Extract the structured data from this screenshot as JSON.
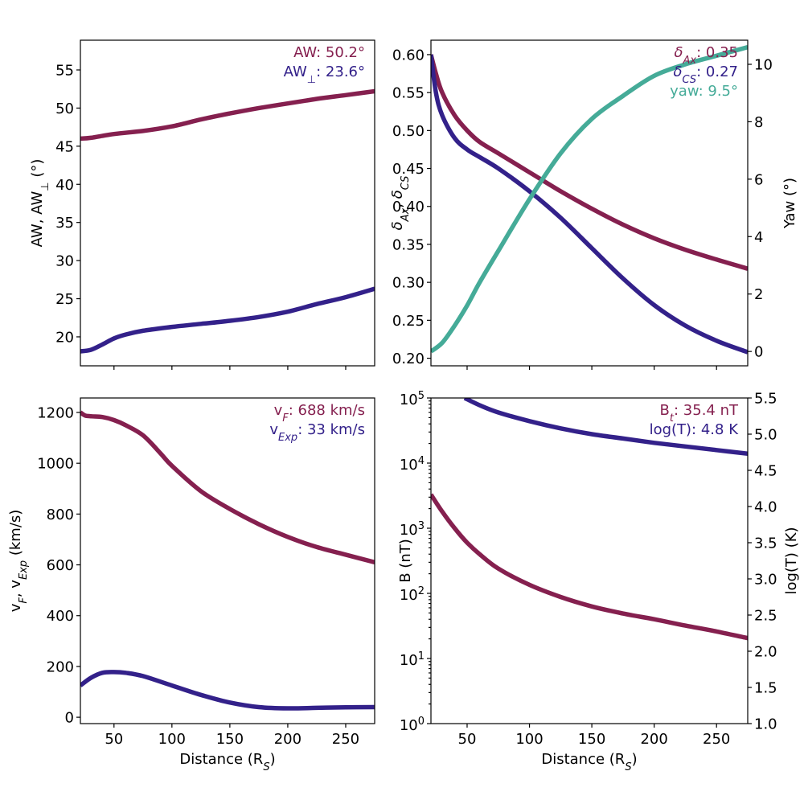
{
  "colors": {
    "maroon": "#85204f",
    "indigo": "#33218a",
    "teal": "#45ab98"
  },
  "chart_data": [
    {
      "id": "aw",
      "type": "line",
      "title": "",
      "xlabel": "",
      "ylabel": "AW, AW⊥ (°)",
      "xlim": [
        21,
        275
      ],
      "ylim": [
        16.2,
        58.9
      ],
      "x_ticks": [
        50,
        100,
        150,
        200,
        250
      ],
      "x_tick_labels_visible": false,
      "y_ticks": [
        20,
        25,
        30,
        35,
        40,
        45,
        50,
        55
      ],
      "y_tick_labels": [
        "20",
        "25",
        "30",
        "35",
        "40",
        "45",
        "50",
        "55"
      ],
      "grid": false,
      "annotations": [
        {
          "text": "AW: 50.2°",
          "color": "maroon",
          "position": "top-right"
        },
        {
          "text": "AW⊥: 23.6°",
          "color": "indigo",
          "position": "top-right"
        }
      ],
      "series": [
        {
          "name": "AW",
          "color": "maroon",
          "axis": "left",
          "x": [
            21,
            30,
            50,
            75,
            100,
            125,
            150,
            175,
            200,
            225,
            250,
            275
          ],
          "y": [
            46.0,
            46.1,
            46.6,
            47.0,
            47.6,
            48.5,
            49.3,
            50.0,
            50.6,
            51.2,
            51.7,
            52.2
          ]
        },
        {
          "name": "AW⊥",
          "color": "indigo",
          "axis": "left",
          "x": [
            21,
            30,
            40,
            50,
            60,
            75,
            100,
            125,
            150,
            175,
            200,
            225,
            250,
            275
          ],
          "y": [
            18.1,
            18.3,
            19.0,
            19.8,
            20.3,
            20.8,
            21.3,
            21.7,
            22.1,
            22.6,
            23.3,
            24.3,
            25.2,
            26.3
          ]
        }
      ]
    },
    {
      "id": "delta-yaw",
      "type": "line",
      "title": "",
      "xlabel": "",
      "ylabel": "δAx, δCS",
      "ylabel_right": "Yaw (°)",
      "xlim": [
        21,
        275
      ],
      "ylim": [
        0.19,
        0.619
      ],
      "ylim_right": [
        -0.5,
        10.84
      ],
      "x_ticks": [
        50,
        100,
        150,
        200,
        250
      ],
      "x_tick_labels_visible": false,
      "y_ticks": [
        0.2,
        0.25,
        0.3,
        0.35,
        0.4,
        0.45,
        0.5,
        0.55,
        0.6
      ],
      "y_tick_labels": [
        "0.20",
        "0.25",
        "0.30",
        "0.35",
        "0.40",
        "0.45",
        "0.50",
        "0.55",
        "0.60"
      ],
      "y_ticks_right": [
        0,
        2,
        4,
        6,
        8,
        10
      ],
      "y_tick_labels_right": [
        "0",
        "2",
        "4",
        "6",
        "8",
        "10"
      ],
      "grid": false,
      "annotations": [
        {
          "text": "δAx: 0.35",
          "color": "maroon",
          "position": "top-right"
        },
        {
          "text": "δCS: 0.27",
          "color": "indigo",
          "position": "top-right"
        },
        {
          "text": "yaw:  9.5°",
          "color": "teal",
          "position": "top-right"
        }
      ],
      "series": [
        {
          "name": "δAx",
          "color": "maroon",
          "axis": "left",
          "x": [
            21,
            25,
            30,
            40,
            50,
            60,
            75,
            100,
            125,
            150,
            175,
            200,
            225,
            250,
            275
          ],
          "y": [
            0.6,
            0.575,
            0.55,
            0.52,
            0.5,
            0.485,
            0.47,
            0.445,
            0.42,
            0.397,
            0.376,
            0.358,
            0.343,
            0.33,
            0.318
          ]
        },
        {
          "name": "δCS",
          "color": "indigo",
          "axis": "left",
          "x": [
            21,
            25,
            30,
            40,
            50,
            60,
            75,
            100,
            125,
            150,
            175,
            200,
            225,
            250,
            275
          ],
          "y": [
            0.6,
            0.55,
            0.52,
            0.49,
            0.475,
            0.465,
            0.45,
            0.42,
            0.385,
            0.345,
            0.305,
            0.27,
            0.243,
            0.223,
            0.208
          ]
        },
        {
          "name": "yaw",
          "color": "teal",
          "axis": "right",
          "x": [
            21,
            30,
            40,
            50,
            60,
            75,
            100,
            125,
            150,
            175,
            200,
            225,
            250,
            275
          ],
          "y": [
            0.0,
            0.3,
            0.9,
            1.6,
            2.4,
            3.5,
            5.3,
            6.9,
            8.1,
            8.9,
            9.6,
            10.0,
            10.3,
            10.6
          ]
        }
      ]
    },
    {
      "id": "velocity",
      "type": "line",
      "title": "",
      "xlabel": "Distance (RS)",
      "ylabel": "vF, vExp (km/s)",
      "xlim": [
        21,
        275
      ],
      "ylim": [
        -25,
        1257
      ],
      "x_ticks": [
        50,
        100,
        150,
        200,
        250
      ],
      "x_tick_labels": [
        "50",
        "100",
        "150",
        "200",
        "250"
      ],
      "y_ticks": [
        0,
        200,
        400,
        600,
        800,
        1000,
        1200
      ],
      "y_tick_labels": [
        "0",
        "200",
        "400",
        "600",
        "800",
        "1000",
        "1200"
      ],
      "grid": false,
      "annotations": [
        {
          "text": "vF:  688 km/s",
          "color": "maroon",
          "position": "top-right"
        },
        {
          "text": "vExp:   33 km/s",
          "color": "indigo",
          "position": "top-right"
        }
      ],
      "series": [
        {
          "name": "vF",
          "color": "maroon",
          "axis": "left",
          "x": [
            21,
            25,
            30,
            40,
            50,
            60,
            75,
            90,
            100,
            125,
            150,
            175,
            200,
            225,
            250,
            275
          ],
          "y": [
            1200,
            1188,
            1185,
            1182,
            1170,
            1150,
            1110,
            1040,
            990,
            890,
            820,
            760,
            710,
            670,
            640,
            610
          ]
        },
        {
          "name": "vExp",
          "color": "indigo",
          "axis": "left",
          "x": [
            21,
            30,
            40,
            50,
            60,
            75,
            100,
            125,
            150,
            175,
            200,
            225,
            250,
            275
          ],
          "y": [
            125,
            155,
            175,
            178,
            175,
            162,
            125,
            88,
            58,
            40,
            35,
            37,
            39,
            40
          ]
        }
      ]
    },
    {
      "id": "field-temp",
      "type": "line",
      "title": "",
      "xlabel": "Distance (RS)",
      "ylabel": "B (nT)",
      "ylabel_right": "log(T) (K)",
      "xlim": [
        21,
        275
      ],
      "yscale": "log",
      "ylim": [
        1,
        100000
      ],
      "ylim_right": [
        1.0,
        5.5
      ],
      "x_ticks": [
        50,
        100,
        150,
        200,
        250
      ],
      "x_tick_labels": [
        "50",
        "100",
        "150",
        "200",
        "250"
      ],
      "y_ticks": [
        1,
        10,
        100,
        1000,
        10000,
        100000
      ],
      "y_tick_exponents": [
        "0",
        "1",
        "2",
        "3",
        "4",
        "5"
      ],
      "y_ticks_right": [
        1.0,
        1.5,
        2.0,
        2.5,
        3.0,
        3.5,
        4.0,
        4.5,
        5.0,
        5.5
      ],
      "y_tick_labels_right": [
        "1.0",
        "1.5",
        "2.0",
        "2.5",
        "3.0",
        "3.5",
        "4.0",
        "4.5",
        "5.0",
        "5.5"
      ],
      "grid": false,
      "annotations": [
        {
          "text": "Bt: 35.4 nT",
          "color": "maroon",
          "position": "top-right"
        },
        {
          "text": "log(T):  4.8 K",
          "color": "indigo",
          "position": "top-right"
        }
      ],
      "series": [
        {
          "name": "B",
          "color": "maroon",
          "axis": "left",
          "x": [
            21,
            30,
            40,
            50,
            60,
            75,
            100,
            125,
            150,
            175,
            200,
            225,
            250,
            275
          ],
          "y": [
            3300,
            1800,
            1000,
            600,
            400,
            240,
            135,
            88,
            63,
            49,
            40,
            32,
            26,
            20.5
          ]
        },
        {
          "name": "log(T)",
          "color": "indigo",
          "axis": "right",
          "x": [
            48,
            60,
            75,
            100,
            125,
            150,
            175,
            200,
            225,
            250,
            275
          ],
          "y": [
            5.5,
            5.4,
            5.3,
            5.18,
            5.08,
            5.0,
            4.94,
            4.88,
            4.83,
            4.78,
            4.73
          ]
        }
      ]
    }
  ]
}
